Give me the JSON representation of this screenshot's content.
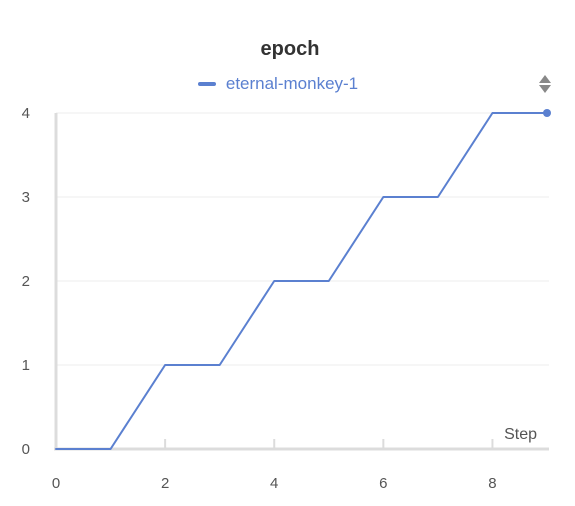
{
  "chart_data": {
    "type": "line",
    "title": "epoch",
    "xlabel": "Step",
    "ylabel": "",
    "xlim": [
      0,
      9
    ],
    "ylim": [
      0,
      4
    ],
    "x_ticks": [
      0,
      2,
      4,
      6,
      8
    ],
    "y_ticks": [
      0,
      1,
      2,
      3,
      4
    ],
    "grid": true,
    "legend_position": "top-center",
    "series": [
      {
        "name": "eternal-monkey-1",
        "color": "#5b80d0",
        "x": [
          0,
          1,
          2,
          3,
          4,
          5,
          6,
          7,
          8,
          9
        ],
        "y": [
          0,
          0,
          1,
          1,
          2,
          2,
          3,
          3,
          4,
          4
        ]
      }
    ]
  },
  "colors": {
    "grid": "#eeeeee",
    "axis": "#dcdcdc",
    "tick_text": "#555555",
    "scroll_arrows": "#888888"
  },
  "icons": {
    "legend_scroll": "up-down-arrows-icon"
  }
}
